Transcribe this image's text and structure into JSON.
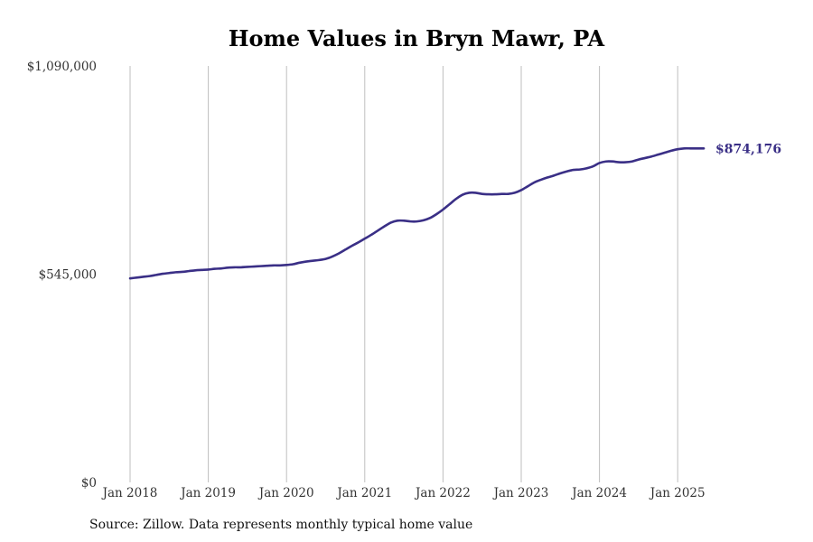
{
  "chart_data": {
    "type": "line",
    "title": "Home Values in Bryn Mawr, PA",
    "xlabel": "",
    "ylabel": "",
    "ylim": [
      0,
      1090000
    ],
    "xlim": [
      "2018-01",
      "2025-06"
    ],
    "grid": {
      "vertical": true,
      "horizontal": false
    },
    "yticks": [
      {
        "value": 0,
        "label": "$0"
      },
      {
        "value": 545000,
        "label": "$545,000"
      },
      {
        "value": 1090000,
        "label": "$1,090,000"
      }
    ],
    "xticks": [
      {
        "value": "2018-01",
        "label": "Jan 2018"
      },
      {
        "value": "2019-01",
        "label": "Jan 2019"
      },
      {
        "value": "2020-01",
        "label": "Jan 2020"
      },
      {
        "value": "2021-01",
        "label": "Jan 2021"
      },
      {
        "value": "2022-01",
        "label": "Jan 2022"
      },
      {
        "value": "2023-01",
        "label": "Jan 2023"
      },
      {
        "value": "2024-01",
        "label": "Jan 2024"
      },
      {
        "value": "2025-01",
        "label": "Jan 2025"
      }
    ],
    "series": [
      {
        "color": "#3a2f86",
        "x": [
          "2018-01",
          "2018-02",
          "2018-03",
          "2018-04",
          "2018-05",
          "2018-06",
          "2018-07",
          "2018-08",
          "2018-09",
          "2018-10",
          "2018-11",
          "2018-12",
          "2019-01",
          "2019-02",
          "2019-03",
          "2019-04",
          "2019-05",
          "2019-06",
          "2019-07",
          "2019-08",
          "2019-09",
          "2019-10",
          "2019-11",
          "2019-12",
          "2020-01",
          "2020-02",
          "2020-03",
          "2020-04",
          "2020-05",
          "2020-06",
          "2020-07",
          "2020-08",
          "2020-09",
          "2020-10",
          "2020-11",
          "2020-12",
          "2021-01",
          "2021-02",
          "2021-03",
          "2021-04",
          "2021-05",
          "2021-06",
          "2021-07",
          "2021-08",
          "2021-09",
          "2021-10",
          "2021-11",
          "2021-12",
          "2022-01",
          "2022-02",
          "2022-03",
          "2022-04",
          "2022-05",
          "2022-06",
          "2022-07",
          "2022-08",
          "2022-09",
          "2022-10",
          "2022-11",
          "2022-12",
          "2023-01",
          "2023-02",
          "2023-03",
          "2023-04",
          "2023-05",
          "2023-06",
          "2023-07",
          "2023-08",
          "2023-09",
          "2023-10",
          "2023-11",
          "2023-12",
          "2024-01",
          "2024-02",
          "2024-03",
          "2024-04",
          "2024-05",
          "2024-06",
          "2024-07",
          "2024-08",
          "2024-09",
          "2024-10",
          "2024-11",
          "2024-12",
          "2025-01",
          "2025-02",
          "2025-03",
          "2025-04",
          "2025-05"
        ],
        "values": [
          534000,
          536000,
          538000,
          540000,
          543000,
          546000,
          548000,
          550000,
          551000,
          553000,
          555000,
          556000,
          557000,
          559000,
          560000,
          562000,
          563000,
          563000,
          564000,
          565000,
          566000,
          567000,
          568000,
          568000,
          569000,
          571000,
          575000,
          578000,
          580000,
          582000,
          585000,
          591000,
          599000,
          609000,
          619000,
          628000,
          638000,
          648000,
          659000,
          670000,
          680000,
          685000,
          685000,
          683000,
          683000,
          686000,
          692000,
          702000,
          714000,
          728000,
          742000,
          753000,
          758000,
          758000,
          755000,
          754000,
          754000,
          755000,
          755000,
          758000,
          765000,
          775000,
          785000,
          792000,
          798000,
          803000,
          809000,
          814000,
          818000,
          819000,
          822000,
          827000,
          836000,
          840000,
          840000,
          838000,
          838000,
          840000,
          845000,
          849000,
          853000,
          858000,
          863000,
          868000,
          872000,
          874176,
          874176,
          874176,
          874176
        ],
        "end_label": "$874,176",
        "end_value": 874176
      }
    ]
  },
  "footer": {
    "source": "Source: Zillow. Data represents monthly typical home value"
  }
}
